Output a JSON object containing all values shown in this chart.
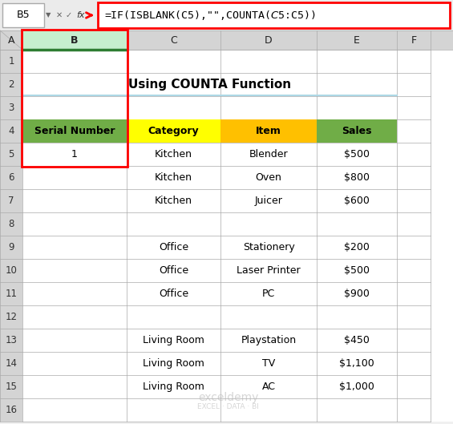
{
  "title": "Using COUNTA Function",
  "formula_bar_cell": "B5",
  "formula_bar_formula": "=IF(ISBLANK(C5),\"\",COUNTA($C$5:C5))",
  "col_headers": [
    "A",
    "B",
    "C",
    "D",
    "E",
    "F"
  ],
  "row_headers": [
    "1",
    "2",
    "3",
    "4",
    "5",
    "6",
    "7",
    "8",
    "9",
    "10",
    "11",
    "12",
    "13",
    "14",
    "15",
    "16"
  ],
  "header_row": [
    "Serial Number",
    "Category",
    "Item",
    "Sales"
  ],
  "header_colors": [
    "#70AD47",
    "#FFFF00",
    "#FFC000",
    "#70AD47"
  ],
  "data_rows": [
    [
      "1",
      "Kitchen",
      "Blender",
      "$500"
    ],
    [
      "",
      "Kitchen",
      "Oven",
      "$800"
    ],
    [
      "",
      "Kitchen",
      "Juicer",
      "$600"
    ],
    [
      "",
      "",
      "",
      ""
    ],
    [
      "",
      "Office",
      "Stationery",
      "$200"
    ],
    [
      "",
      "Office",
      "Laser Printer",
      "$500"
    ],
    [
      "",
      "Office",
      "PC",
      "$900"
    ],
    [
      "",
      "",
      "",
      ""
    ],
    [
      "",
      "Living Room",
      "Playstation",
      "$450"
    ],
    [
      "",
      "Living Room",
      "TV",
      "$1,100"
    ],
    [
      "",
      "Living Room",
      "AC",
      "$1,000"
    ]
  ],
  "grid_color": "#AAAAAA",
  "row_hdr_bg": "#D4D4D4",
  "col_hdr_bg": "#D4D4D4",
  "col_b_hdr_bg": "#C6EFCE",
  "title_color": "#000000",
  "formula_border": "#FF0000",
  "cell_b5_border": "#FF0000",
  "red_rect_color": "#FF0000",
  "light_blue_line": "#ADD8E6",
  "watermark_color": "#BBBBBB",
  "col_b_hdr_bottom_line": "#2E7D32"
}
